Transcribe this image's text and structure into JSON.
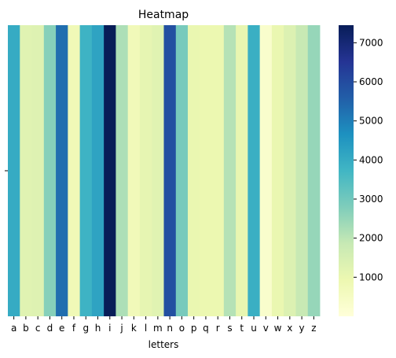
{
  "chart_data": {
    "type": "heatmap",
    "title": "Heatmap",
    "xlabel": "letters",
    "ylabel": "",
    "categories": [
      "a",
      "b",
      "c",
      "d",
      "e",
      "f",
      "g",
      "h",
      "i",
      "j",
      "k",
      "l",
      "m",
      "n",
      "o",
      "p",
      "q",
      "r",
      "s",
      "t",
      "u",
      "v",
      "w",
      "x",
      "y",
      "z"
    ],
    "rows": [
      ""
    ],
    "values": [
      [
        4000,
        1250,
        1300,
        2700,
        5300,
        800,
        3800,
        4200,
        7450,
        2200,
        750,
        1100,
        1250,
        5900,
        2900,
        1000,
        950,
        950,
        2100,
        1050,
        3900,
        300,
        1000,
        1350,
        1850,
        2500
      ]
    ],
    "colorbar": {
      "min": 0,
      "max": 7450,
      "ticks": [
        1000,
        2000,
        3000,
        4000,
        5000,
        6000,
        7000
      ],
      "colormap": "YlGnBu"
    },
    "grid": false,
    "legend": "colorbar-right"
  }
}
